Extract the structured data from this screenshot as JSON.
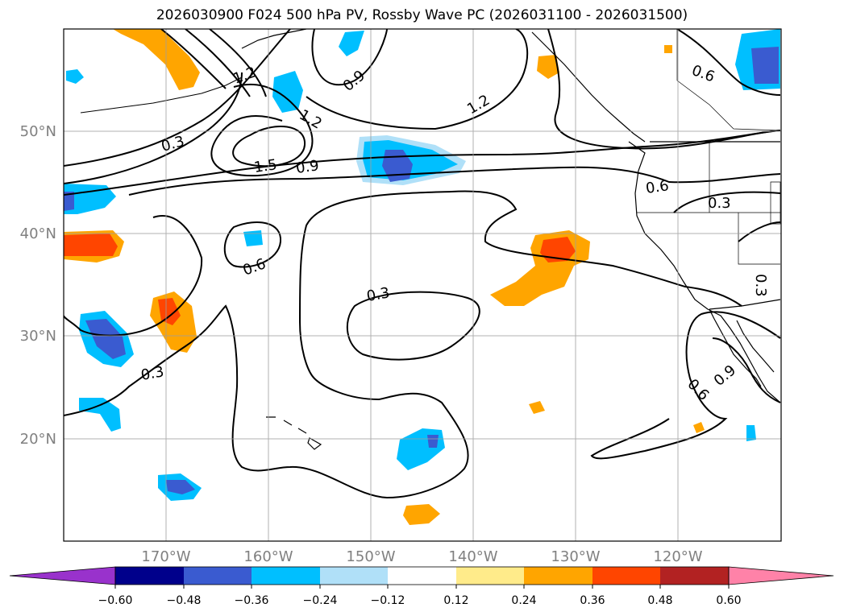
{
  "title": "2026030900 F024 500 hPa PV, Rossby Wave PC (2026031100 - 2026031500)",
  "map": {
    "projection": "PlateCarree",
    "lon_range": [
      -180,
      -110
    ],
    "lat_range": [
      10,
      60
    ],
    "gridlines": true,
    "lon_ticks": [
      "170°W",
      "160°W",
      "150°W",
      "140°W",
      "130°W",
      "120°W"
    ],
    "lat_ticks": [
      "50°N",
      "40°N",
      "30°N",
      "20°N"
    ],
    "tick_color": "#808080"
  },
  "contour_labels": [
    "0.3",
    "0.6",
    "0.9",
    "1.2",
    "1.5"
  ],
  "colorbar": {
    "ticks": [
      "−0.60",
      "−0.48",
      "−0.36",
      "−0.24",
      "−0.12",
      "0.12",
      "0.24",
      "0.36",
      "0.48",
      "0.60"
    ],
    "colors": [
      "#9932cc",
      "#00008b",
      "#3a5bd0",
      "#00bfff",
      "#b0e0f8",
      "#ffffff",
      "#ffeb8a",
      "#ffa500",
      "#ff4500",
      "#b22222",
      "#ff82a8"
    ],
    "extend": "both"
  }
}
